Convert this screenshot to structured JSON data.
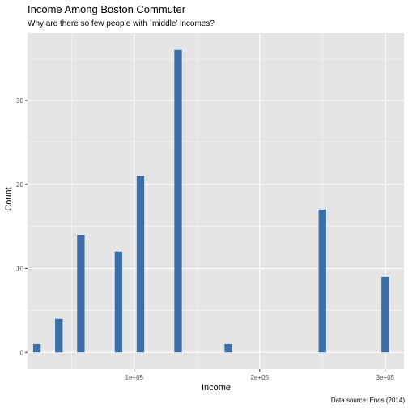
{
  "chart_data": {
    "type": "bar",
    "title": "Income Among Boston Commuter",
    "subtitle": "Why are there so few people with `middle' incomes?",
    "xlabel": "Income",
    "ylabel": "Count",
    "caption": "Data source: Enos (2014)",
    "bar_color": "#3c6fa8",
    "panel_background": "#e5e5e5",
    "grid_color": "#ffffff",
    "grid": true,
    "legend": "none",
    "xlim": [
      15000,
      315000
    ],
    "ylim": [
      -2,
      38
    ],
    "x_ticks": [
      {
        "value": 100000,
        "label": "1e+05"
      },
      {
        "value": 200000,
        "label": "2e+05"
      },
      {
        "value": 300000,
        "label": "3e+05"
      }
    ],
    "y_ticks": [
      {
        "value": 0,
        "label": "0"
      },
      {
        "value": 10,
        "label": "10"
      },
      {
        "value": 20,
        "label": "20"
      },
      {
        "value": 30,
        "label": "30"
      }
    ],
    "bin_width": 6000,
    "bars": [
      {
        "x": 22500,
        "count": 1
      },
      {
        "x": 40000,
        "count": 4
      },
      {
        "x": 57500,
        "count": 14
      },
      {
        "x": 87500,
        "count": 12
      },
      {
        "x": 105000,
        "count": 21
      },
      {
        "x": 135000,
        "count": 36
      },
      {
        "x": 175000,
        "count": 1
      },
      {
        "x": 250000,
        "count": 17
      },
      {
        "x": 300000,
        "count": 9
      }
    ]
  }
}
